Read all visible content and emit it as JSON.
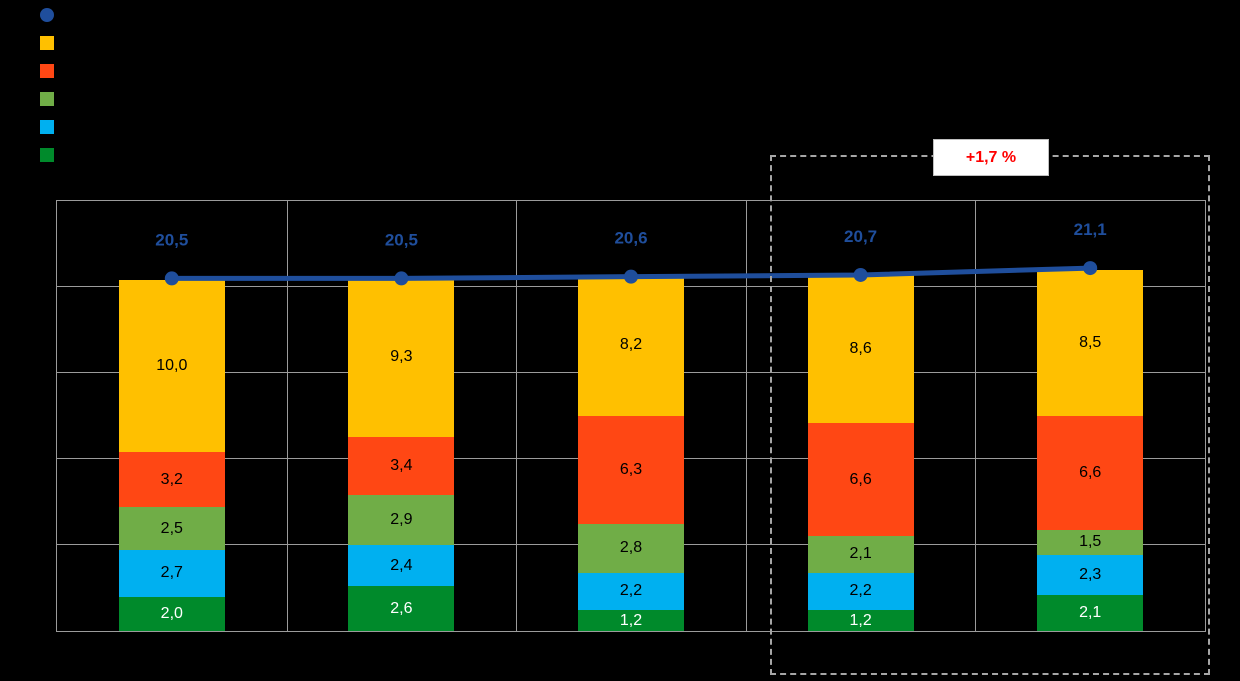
{
  "canvas": {
    "background": "#000000"
  },
  "legend": {
    "position": "top-left",
    "items": [
      {
        "name": "total-line",
        "marker": "circle",
        "color": "#1F4E9C"
      },
      {
        "name": "yellow-series",
        "marker": "square",
        "color": "#FFC000"
      },
      {
        "name": "orange-series",
        "marker": "square",
        "color": "#FF4714"
      },
      {
        "name": "green-series",
        "marker": "square",
        "color": "#70AD47"
      },
      {
        "name": "light-blue-series",
        "marker": "square",
        "color": "#00B0F0"
      },
      {
        "name": "dark-green-series",
        "marker": "square",
        "color": "#008A2B"
      }
    ]
  },
  "annotation": {
    "text": "+1,7 %",
    "color": "#FF0000"
  },
  "chart_data": {
    "type": "bar",
    "variant": "stacked-column-with-line-total",
    "title": "",
    "xlabel": "",
    "ylabel": "",
    "categories": [
      "",
      "",
      "",
      "",
      ""
    ],
    "series": [
      {
        "name": "dark-green",
        "color": "#008A2B",
        "label_color": "#FFFFFF",
        "values": [
          2.0,
          2.6,
          1.2,
          1.2,
          2.1
        ],
        "labels": [
          "2,0",
          "2,6",
          "1,2",
          "1,2",
          "2,1"
        ]
      },
      {
        "name": "light-blue",
        "color": "#00B0F0",
        "label_color": "#000000",
        "values": [
          2.7,
          2.4,
          2.2,
          2.2,
          2.3
        ],
        "labels": [
          "2,7",
          "2,4",
          "2,2",
          "2,2",
          "2,3"
        ]
      },
      {
        "name": "green",
        "color": "#70AD47",
        "label_color": "#000000",
        "values": [
          2.5,
          2.9,
          2.8,
          2.1,
          1.5
        ],
        "labels": [
          "2,5",
          "2,9",
          "2,8",
          "2,1",
          "1,5"
        ]
      },
      {
        "name": "orange",
        "color": "#FF4714",
        "label_color": "#000000",
        "values": [
          3.2,
          3.4,
          6.3,
          6.6,
          6.6
        ],
        "labels": [
          "3,2",
          "3,4",
          "6,3",
          "6,6",
          "6,6"
        ]
      },
      {
        "name": "yellow",
        "color": "#FFC000",
        "label_color": "#000000",
        "values": [
          10.0,
          9.3,
          8.2,
          8.6,
          8.5
        ],
        "labels": [
          "10,0",
          "9,3",
          "8,2",
          "8,6",
          "8,5"
        ]
      }
    ],
    "line": {
      "name": "total",
      "color": "#1F4E9C",
      "label_color": "#1F4E9C",
      "values": [
        20.5,
        20.5,
        20.6,
        20.7,
        21.1
      ],
      "labels": [
        "20,5",
        "20,5",
        "20,6",
        "20,7",
        "21,1"
      ]
    },
    "ylim": [
      0,
      25
    ],
    "gridline_step": 5,
    "grid": true,
    "legend_position": "top-left",
    "highlight": {
      "category_start": 3,
      "category_end": 4,
      "label": "+1,7 %"
    }
  }
}
